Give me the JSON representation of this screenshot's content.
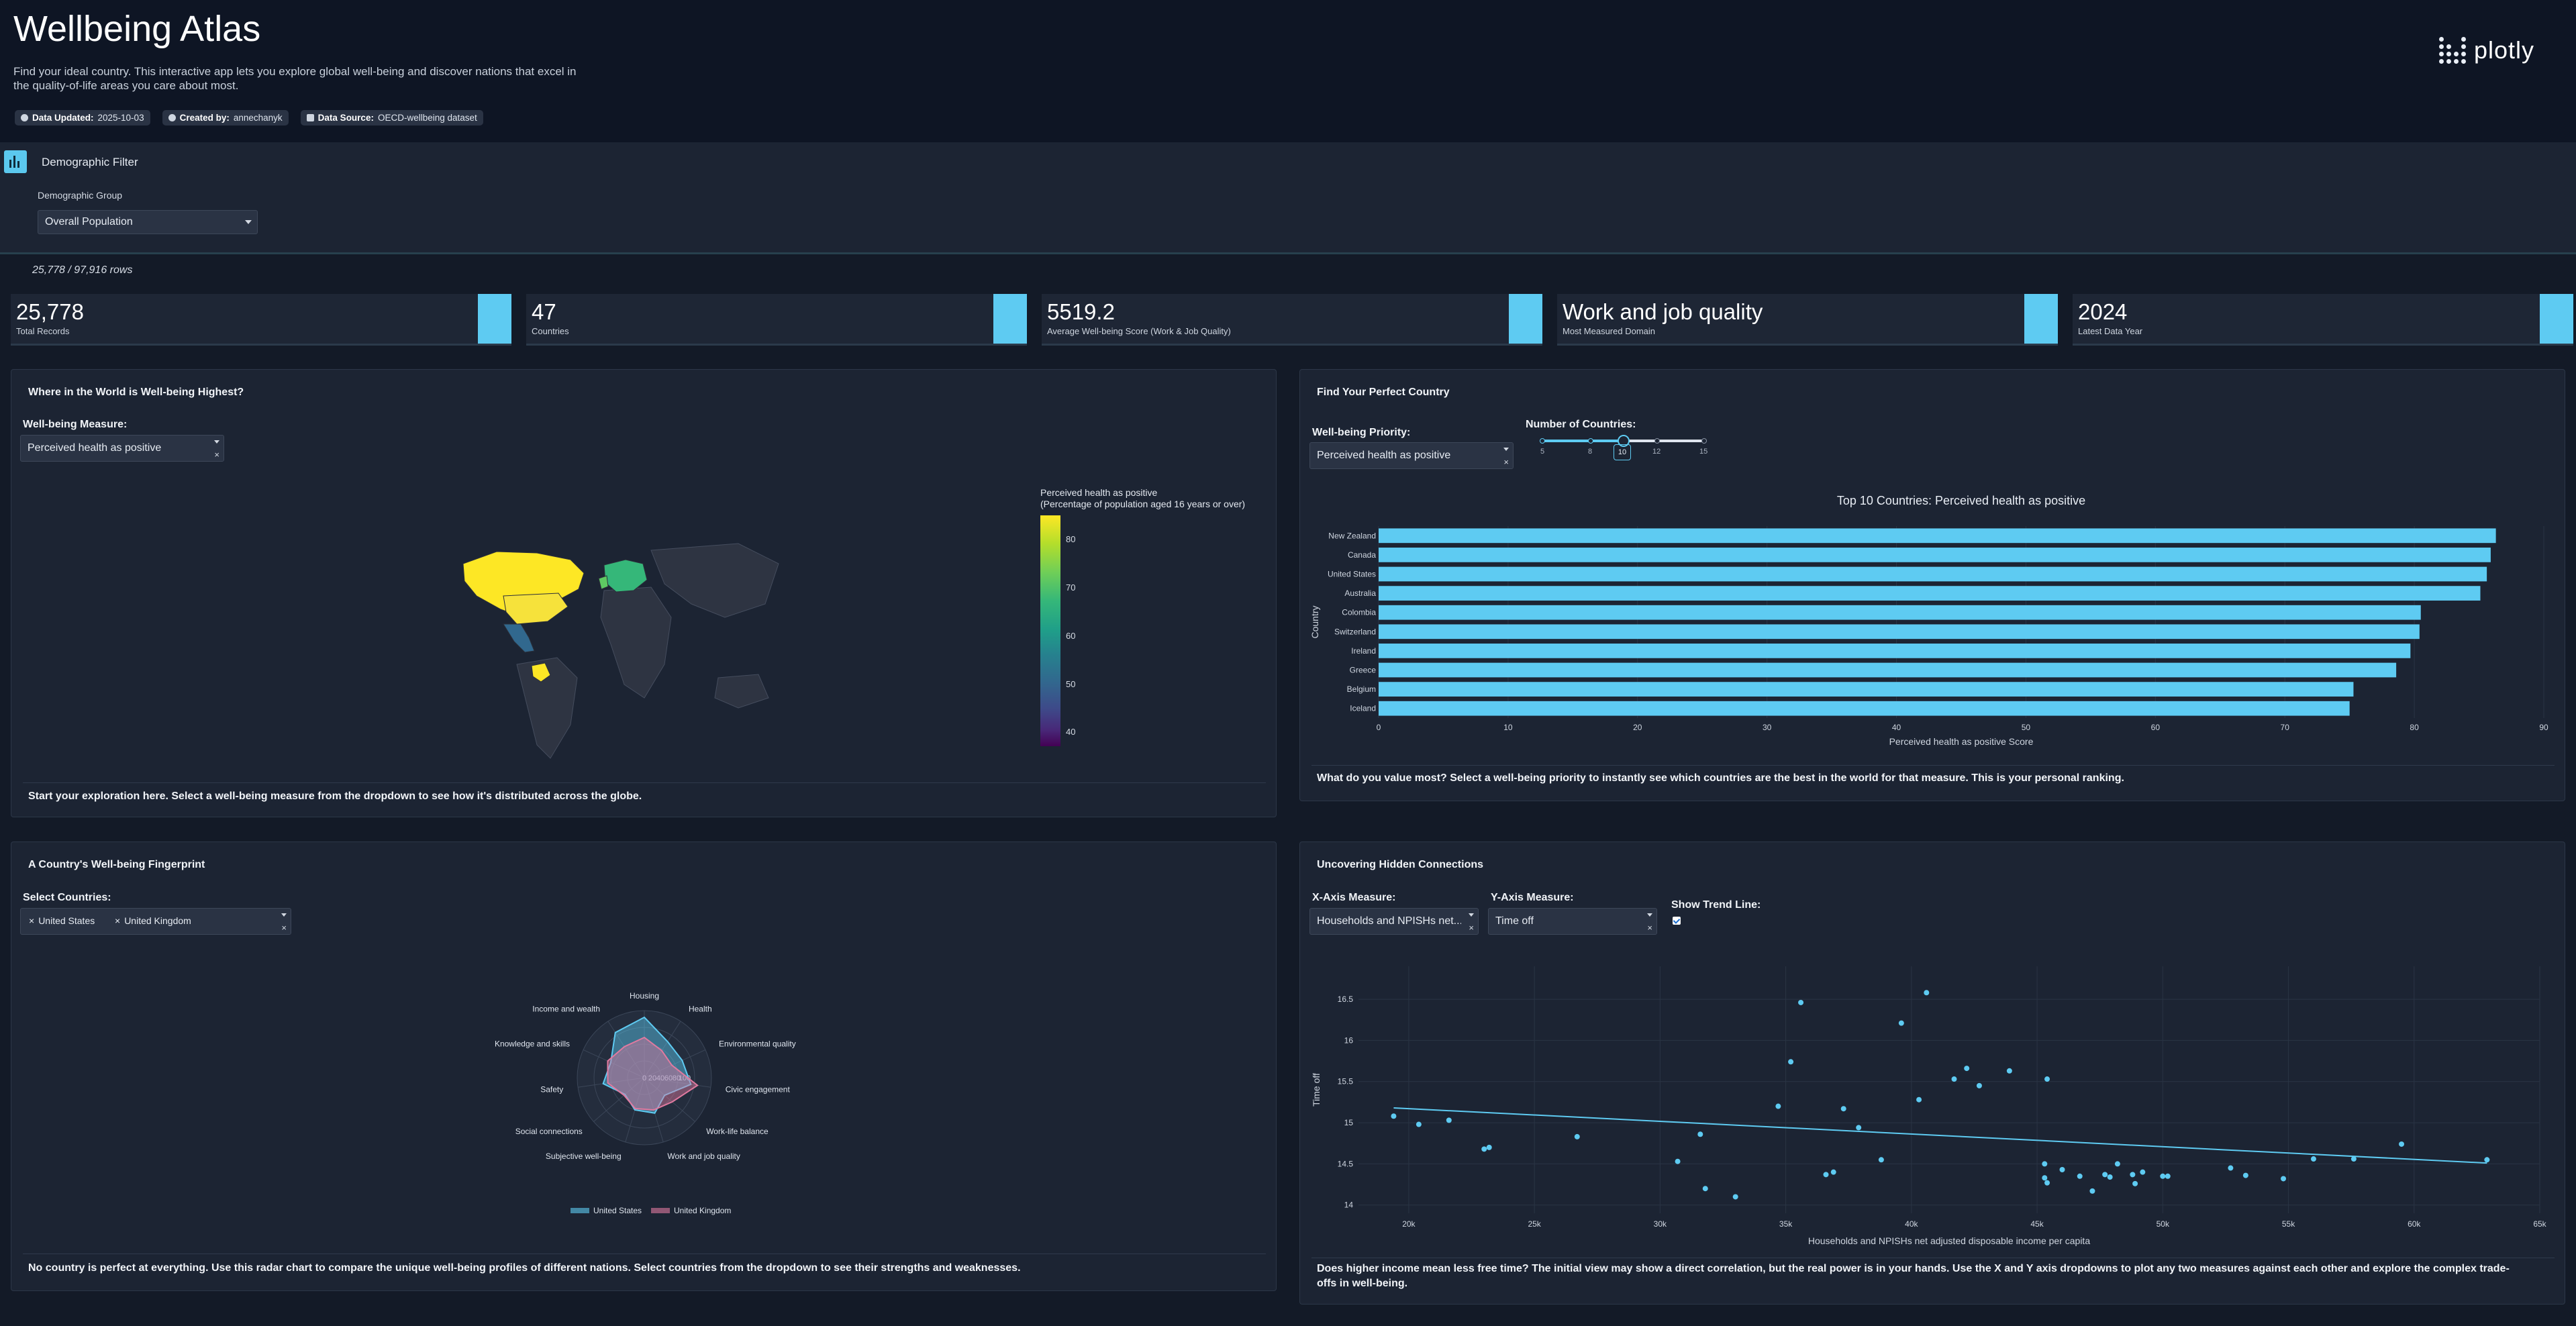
{
  "header": {
    "title": "Wellbeing Atlas",
    "subtitle": "Find your ideal country. This interactive app lets you explore global well-being and discover nations that excel in the quality-of-life areas you care about most.",
    "badges": [
      {
        "key": "Data Updated:",
        "value": "2025-10-03"
      },
      {
        "key": "Created by:",
        "value": "annechanyk"
      },
      {
        "key": "Data Source:",
        "value": "OECD-wellbeing dataset"
      }
    ],
    "logo_text": "plotly"
  },
  "filter": {
    "title": "Demographic Filter",
    "group_label": "Demographic Group",
    "group_value": "Overall Population"
  },
  "row_count": "25,778 / 97,916 rows",
  "kpis": [
    {
      "value": "25,778",
      "label": "Total Records"
    },
    {
      "value": "47",
      "label": "Countries"
    },
    {
      "value": "5519.2",
      "label": "Average Well-being Score (Work & Job Quality)"
    },
    {
      "value": "Work and job quality",
      "label": "Most Measured Domain"
    },
    {
      "value": "2024",
      "label": "Latest Data Year"
    }
  ],
  "map_panel": {
    "title": "Where in the World is Well-being Highest?",
    "measure_label": "Well-being Measure:",
    "measure_value": "Perceived health as positive",
    "colorbar_title_1": "Perceived health as positive",
    "colorbar_title_2": "(Percentage of population aged 16 years or over)",
    "colorbar_ticks": [
      "80",
      "70",
      "60",
      "50",
      "40"
    ],
    "footer": "Start your exploration here. Select a well-being measure from the dropdown to see how it's distributed across the globe."
  },
  "ranking_panel": {
    "title": "Find Your Perfect Country",
    "priority_label": "Well-being Priority:",
    "priority_value": "Perceived health as positive",
    "count_label": "Number of Countries:",
    "slider_marks": [
      "5",
      "8",
      "10",
      "12",
      "15"
    ],
    "slider_value": "10",
    "footer": "What do you value most? Select a well-being priority to instantly see which countries are the best in the world for that measure. This is your personal ranking."
  },
  "radar_panel": {
    "title": "A Country's Well-being Fingerprint",
    "select_label": "Select Countries:",
    "selected": [
      "United States",
      "United Kingdom"
    ],
    "footer": "No country is perfect at everything. Use this radar chart to compare the unique well-being profiles of different nations. Select countries from the dropdown to see their strengths and weaknesses."
  },
  "scatter_panel": {
    "title": "Uncovering Hidden Connections",
    "x_label": "X-Axis Measure:",
    "x_value": "Households and NPISHs net...",
    "y_label": "Y-Axis Measure:",
    "y_value": "Time off",
    "trend_label": "Show Trend Line:",
    "trend_checked": true,
    "footer_1": "Does higher income mean less free time? The initial view may show a direct correlation, but the real power is in your hands. Use the X and Y axis dropdowns to plot any two measures against each other and explore the complex trade-",
    "footer_2": "offs in well-being."
  },
  "chart_data": [
    {
      "type": "choropleth",
      "colorscale": "viridis",
      "zrange": [
        37,
        86
      ],
      "colorbar_ticks": [
        40,
        50,
        60,
        70,
        80
      ],
      "note": "",
      "visible_highlights": [
        "United States",
        "Canada",
        "Colombia",
        "Mexico",
        "Europe"
      ]
    },
    {
      "type": "bar",
      "orientation": "horizontal",
      "title": "Top 10 Countries: Perceived health as positive",
      "xlabel": "Perceived health as positive Score",
      "ylabel": "Country",
      "xlim": [
        0,
        90
      ],
      "x_ticks": [
        0,
        10,
        20,
        30,
        40,
        50,
        60,
        70,
        80,
        90
      ],
      "color": "#5ecbf2",
      "categories": [
        "New Zealand",
        "Canada",
        "United States",
        "Australia",
        "Colombia",
        "Switzerland",
        "Ireland",
        "Greece",
        "Belgium",
        "Iceland"
      ],
      "values": [
        86.3,
        85.9,
        85.6,
        85.1,
        80.5,
        80.4,
        79.7,
        78.6,
        75.3,
        75.0
      ]
    },
    {
      "type": "radar",
      "axes": [
        "Health",
        "Environmental quality",
        "Civic engagement",
        "Work-life balance",
        "Work and job quality",
        "Subjective well-being",
        "Social connections",
        "Safety",
        "Knowledge and skills",
        "Income and wealth",
        "Housing"
      ],
      "radial_ticks": [
        0,
        20,
        40,
        60,
        80,
        100
      ],
      "rmax": 100,
      "series": [
        {
          "name": "United States",
          "color": "#5ecbf2",
          "values": [
            64,
            62,
            70,
            40,
            55,
            50,
            38,
            62,
            55,
            80,
            90
          ]
        },
        {
          "name": "United Kingdom",
          "color": "#e07aa0",
          "values": [
            48,
            45,
            80,
            55,
            50,
            48,
            40,
            55,
            60,
            55,
            60
          ]
        }
      ]
    },
    {
      "type": "scatter",
      "xlabel": "Households and NPISHs net adjusted disposable income per capita",
      "ylabel": "Time off",
      "xlim": [
        18000,
        65000
      ],
      "ylim": [
        13.9,
        16.9
      ],
      "x_ticks": [
        20000,
        25000,
        30000,
        35000,
        40000,
        45000,
        50000,
        55000,
        60000,
        65000
      ],
      "x_tick_labels": [
        "20k",
        "25k",
        "30k",
        "35k",
        "40k",
        "45k",
        "50k",
        "55k",
        "60k",
        "65k"
      ],
      "y_ticks": [
        14,
        14.5,
        15,
        15.5,
        16,
        16.5
      ],
      "color": "#5ecbf2",
      "points": [
        [
          19400,
          15.08
        ],
        [
          20400,
          14.98
        ],
        [
          21600,
          15.03
        ],
        [
          23000,
          14.68
        ],
        [
          23200,
          14.7
        ],
        [
          26700,
          14.83
        ],
        [
          30700,
          14.53
        ],
        [
          31600,
          14.86
        ],
        [
          31800,
          14.2
        ],
        [
          33000,
          14.1
        ],
        [
          34700,
          15.2
        ],
        [
          35200,
          15.74
        ],
        [
          35600,
          16.46
        ],
        [
          36600,
          14.37
        ],
        [
          36900,
          14.4
        ],
        [
          37300,
          15.17
        ],
        [
          37900,
          14.94
        ],
        [
          38800,
          14.55
        ],
        [
          39600,
          16.21
        ],
        [
          40300,
          15.28
        ],
        [
          40600,
          16.58
        ],
        [
          41700,
          15.53
        ],
        [
          42200,
          15.66
        ],
        [
          42700,
          15.45
        ],
        [
          43900,
          15.63
        ],
        [
          45300,
          14.5
        ],
        [
          45300,
          14.33
        ],
        [
          45400,
          14.27
        ],
        [
          45400,
          15.53
        ],
        [
          46000,
          14.43
        ],
        [
          46700,
          14.35
        ],
        [
          47200,
          14.17
        ],
        [
          47700,
          14.37
        ],
        [
          47900,
          14.34
        ],
        [
          48200,
          14.5
        ],
        [
          48800,
          14.37
        ],
        [
          48900,
          14.26
        ],
        [
          49200,
          14.4
        ],
        [
          50000,
          14.35
        ],
        [
          50200,
          14.35
        ],
        [
          52700,
          14.45
        ],
        [
          53300,
          14.36
        ],
        [
          54800,
          14.32
        ],
        [
          56000,
          14.56
        ],
        [
          57600,
          14.56
        ],
        [
          59500,
          14.74
        ],
        [
          62900,
          14.55
        ]
      ],
      "trend_line": [
        [
          19400,
          15.18
        ],
        [
          62900,
          14.51
        ]
      ]
    }
  ]
}
